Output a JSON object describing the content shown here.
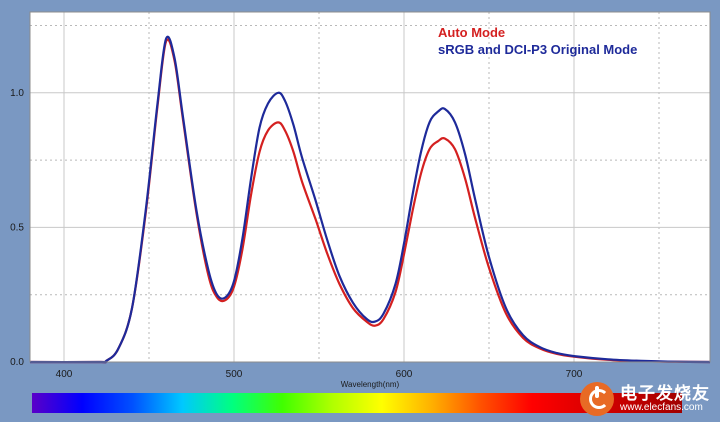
{
  "chart_data": {
    "type": "line",
    "title": "",
    "xlabel": "Wavelength(nm)",
    "ylabel": "",
    "xlim": [
      380,
      780
    ],
    "ylim": [
      0,
      1.3
    ],
    "x_ticks": [
      400,
      500,
      600,
      700
    ],
    "x_tick_labels": [
      "400",
      "500",
      "600",
      "700"
    ],
    "y_ticks": [
      0.0,
      0.5,
      1.0
    ],
    "y_tick_labels": [
      "0.0",
      "0.5",
      "1.0"
    ],
    "grid": true,
    "legend_position": "top-right",
    "series": [
      {
        "name": "Auto Mode",
        "color": "#d42020",
        "x": [
          380,
          420,
          425,
          432,
          440,
          448,
          455,
          460,
          465,
          470,
          478,
          485,
          490,
          495,
          500,
          505,
          510,
          515,
          520,
          526,
          530,
          535,
          540,
          548,
          555,
          562,
          570,
          578,
          583,
          588,
          595,
          600,
          605,
          610,
          615,
          620,
          624,
          630,
          636,
          642,
          650,
          660,
          670,
          680,
          690,
          700,
          720,
          740,
          760,
          780
        ],
        "y": [
          0,
          0,
          0.005,
          0.05,
          0.2,
          0.55,
          0.95,
          1.19,
          1.12,
          0.9,
          0.55,
          0.32,
          0.24,
          0.23,
          0.28,
          0.42,
          0.62,
          0.78,
          0.86,
          0.89,
          0.86,
          0.78,
          0.67,
          0.53,
          0.4,
          0.29,
          0.2,
          0.15,
          0.135,
          0.16,
          0.26,
          0.4,
          0.56,
          0.7,
          0.79,
          0.82,
          0.83,
          0.79,
          0.68,
          0.53,
          0.35,
          0.18,
          0.09,
          0.05,
          0.03,
          0.02,
          0.008,
          0.003,
          0.001,
          0
        ]
      },
      {
        "name": "sRGB and DCI-P3 Original Mode",
        "color": "#1e2a9a",
        "x": [
          380,
          420,
          425,
          432,
          440,
          448,
          455,
          460,
          465,
          470,
          478,
          485,
          490,
          495,
          500,
          505,
          510,
          515,
          520,
          526,
          530,
          535,
          540,
          548,
          555,
          562,
          570,
          578,
          583,
          588,
          595,
          600,
          605,
          610,
          615,
          620,
          624,
          630,
          636,
          642,
          650,
          660,
          670,
          680,
          690,
          700,
          720,
          740,
          760,
          780
        ],
        "y": [
          0,
          0,
          0.005,
          0.05,
          0.2,
          0.56,
          0.96,
          1.2,
          1.13,
          0.91,
          0.56,
          0.34,
          0.25,
          0.24,
          0.3,
          0.46,
          0.68,
          0.87,
          0.96,
          1.0,
          0.97,
          0.88,
          0.76,
          0.6,
          0.45,
          0.32,
          0.22,
          0.16,
          0.15,
          0.18,
          0.29,
          0.44,
          0.62,
          0.78,
          0.89,
          0.93,
          0.94,
          0.89,
          0.77,
          0.6,
          0.39,
          0.2,
          0.1,
          0.055,
          0.033,
          0.022,
          0.01,
          0.004,
          0.001,
          0
        ]
      }
    ],
    "spectrum_bar": {
      "stops": [
        "#5a00c8",
        "#0000ff",
        "#0050ff",
        "#00c8ff",
        "#00ff80",
        "#40ff00",
        "#b0ff00",
        "#ffff00",
        "#ffb000",
        "#ff5000",
        "#ff0000",
        "#e00000",
        "#c00000",
        "#a00000"
      ]
    }
  },
  "watermark": {
    "brand_cn": "电子发烧友",
    "url": "www.elecfans.com",
    "logo_color": "#e86a25"
  }
}
